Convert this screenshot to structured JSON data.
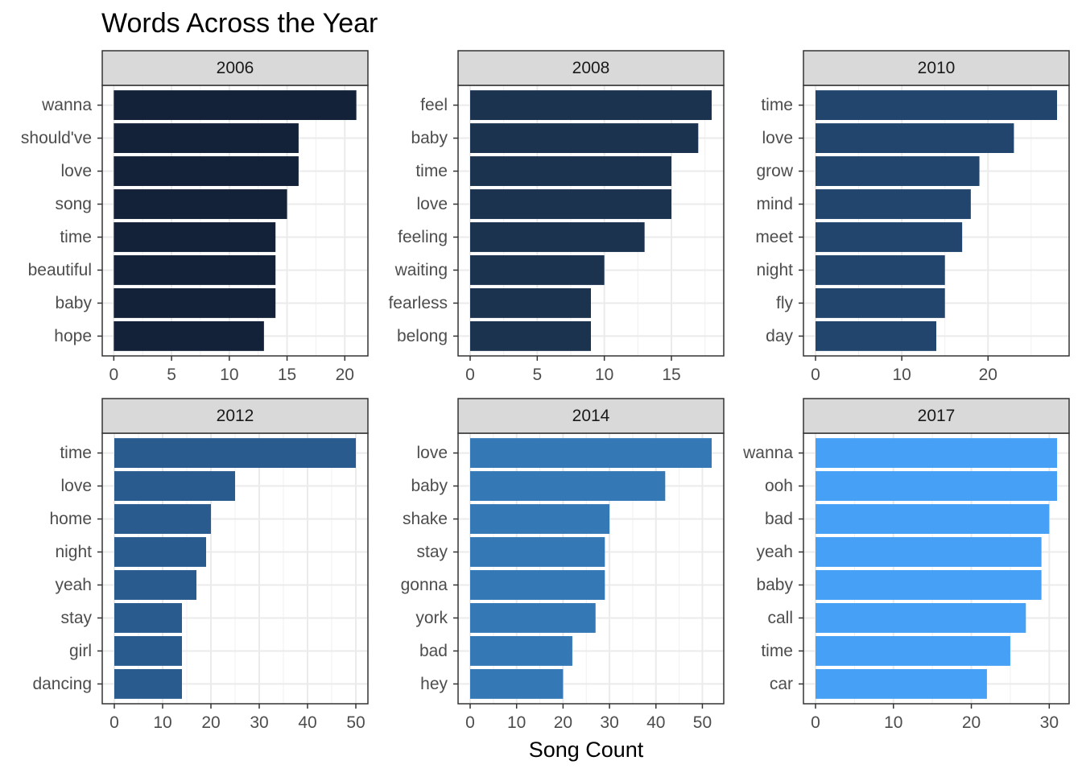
{
  "chart_data": {
    "type": "bar",
    "orientation": "horizontal",
    "title": "Words Across the Year",
    "xlabel": "Song Count",
    "ylabel": "",
    "grid": true,
    "legend": "none",
    "facets": [
      {
        "year": "2006",
        "color": "#132238",
        "categories": [
          "wanna",
          "should've",
          "love",
          "song",
          "time",
          "beautiful",
          "baby",
          "hope"
        ],
        "values": [
          21,
          16,
          16,
          15,
          14,
          14,
          14,
          13
        ],
        "xlim": [
          -1,
          22
        ],
        "ticks": [
          0,
          5,
          10,
          15,
          20
        ],
        "minor_ticks": [
          2.5,
          7.5,
          12.5,
          17.5
        ]
      },
      {
        "year": "2008",
        "color": "#1c3350",
        "categories": [
          "feel",
          "baby",
          "time",
          "love",
          "feeling",
          "waiting",
          "fearless",
          "belong"
        ],
        "values": [
          18,
          17,
          15,
          15,
          13,
          10,
          9,
          9
        ],
        "xlim": [
          -0.9,
          18.9
        ],
        "ticks": [
          0,
          5,
          10,
          15
        ],
        "minor_ticks": [
          2.5,
          7.5,
          12.5,
          17.5
        ]
      },
      {
        "year": "2010",
        "color": "#22456d",
        "categories": [
          "time",
          "love",
          "grow",
          "mind",
          "meet",
          "night",
          "fly",
          "day"
        ],
        "values": [
          28,
          23,
          19,
          18,
          17,
          15,
          15,
          14
        ],
        "xlim": [
          -1.4,
          29.4
        ],
        "ticks": [
          0,
          10,
          20
        ],
        "minor_ticks": [
          5,
          15,
          25
        ]
      },
      {
        "year": "2012",
        "color": "#295b8f",
        "categories": [
          "time",
          "love",
          "home",
          "night",
          "yeah",
          "stay",
          "girl",
          "dancing"
        ],
        "values": [
          50,
          25,
          20,
          19,
          17,
          14,
          14,
          14
        ],
        "xlim": [
          -2.5,
          52.5
        ],
        "ticks": [
          0,
          10,
          20,
          30,
          40,
          50
        ],
        "minor_ticks": [
          5,
          15,
          25,
          35,
          45
        ]
      },
      {
        "year": "2014",
        "color": "#3479b6",
        "categories": [
          "love",
          "baby",
          "shake",
          "stay",
          "gonna",
          "york",
          "bad",
          "hey"
        ],
        "values": [
          52,
          42,
          30,
          29,
          29,
          27,
          22,
          20
        ],
        "xlim": [
          -2.6,
          54.6
        ],
        "ticks": [
          0,
          10,
          20,
          30,
          40,
          50
        ],
        "minor_ticks": [
          5,
          15,
          25,
          35,
          45
        ]
      },
      {
        "year": "2017",
        "color": "#46a0f5",
        "categories": [
          "wanna",
          "ooh",
          "bad",
          "yeah",
          "baby",
          "call",
          "time",
          "car"
        ],
        "values": [
          31,
          31,
          30,
          29,
          29,
          27,
          25,
          22
        ],
        "xlim": [
          -1.55,
          32.55
        ],
        "ticks": [
          0,
          10,
          20,
          30
        ],
        "minor_ticks": [
          5,
          15,
          25
        ]
      }
    ]
  }
}
